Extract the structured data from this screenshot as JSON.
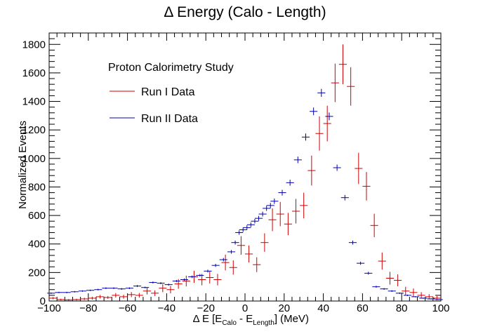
{
  "chart_data": {
    "type": "scatter",
    "title": "Δ Energy (Calo - Length)",
    "xlabel": {
      "prefix": "Δ E [E",
      "sub1": "Calo",
      "mid": " - E",
      "sub2": "Length",
      "suffix": "] (MeV)"
    },
    "ylabel": "Normalized Events",
    "xlim": [
      -100,
      100
    ],
    "ylim": [
      0,
      1880
    ],
    "x_ticks": [
      -100,
      -80,
      -60,
      -40,
      -20,
      0,
      20,
      40,
      60,
      80,
      100
    ],
    "x_tick_labels": [
      "−100",
      "−80",
      "−60",
      "−40",
      "−20",
      "0",
      "20",
      "40",
      "60",
      "80",
      "100"
    ],
    "y_ticks": [
      0,
      200,
      400,
      600,
      800,
      1000,
      1200,
      1400,
      1600,
      1800
    ],
    "y_tick_labels": [
      "0",
      "200",
      "400",
      "600",
      "800",
      "1000",
      "1200",
      "1400",
      "1600",
      "1800"
    ],
    "legend": {
      "title": "Proton Calorimetry Study",
      "placement": "top-left"
    },
    "series": [
      {
        "name": "Run I Data",
        "color": "#cc0000",
        "x": [
          -98,
          -94,
          -90,
          -86,
          -82,
          -78,
          -74,
          -70,
          -66,
          -62,
          -58,
          -54,
          -50,
          -46,
          -42,
          -38,
          -34,
          -30,
          -26,
          -22,
          -18,
          -14,
          -10,
          -6,
          -2,
          2,
          6,
          10,
          14,
          18,
          22,
          26,
          30,
          34,
          38,
          42,
          46,
          50,
          54,
          58,
          62,
          66,
          70,
          74,
          78,
          82,
          86,
          90,
          94,
          98
        ],
        "y": [
          20,
          10,
          8,
          10,
          15,
          20,
          30,
          25,
          40,
          30,
          45,
          40,
          70,
          55,
          90,
          80,
          120,
          140,
          170,
          150,
          165,
          150,
          270,
          235,
          390,
          330,
          255,
          410,
          570,
          610,
          540,
          630,
          670,
          915,
          1175,
          1245,
          1530,
          1660,
          1505,
          930,
          805,
          530,
          280,
          160,
          145,
          70,
          60,
          40,
          30,
          20
        ],
        "err": [
          8,
          6,
          6,
          6,
          8,
          10,
          12,
          10,
          16,
          14,
          18,
          16,
          24,
          20,
          28,
          26,
          34,
          38,
          42,
          40,
          42,
          40,
          55,
          50,
          65,
          60,
          52,
          65,
          80,
          85,
          78,
          86,
          90,
          105,
          120,
          125,
          135,
          140,
          135,
          110,
          100,
          82,
          60,
          45,
          42,
          30,
          28,
          22,
          18,
          15
        ]
      },
      {
        "name": "Run II Data",
        "color": "#0000aa",
        "x": [
          -99,
          -95,
          -91,
          -87,
          -83,
          -79,
          -75,
          -71,
          -67,
          -63,
          -59,
          -55,
          -51,
          -47,
          -43,
          -39,
          -35,
          -31,
          -27,
          -23,
          -19,
          -15,
          -11,
          -7,
          -5,
          -3,
          -1,
          1,
          3,
          5,
          7,
          9,
          11,
          13,
          15,
          19,
          23,
          27,
          31,
          35,
          39,
          43,
          47,
          51,
          55,
          59,
          63,
          67,
          71,
          75,
          79,
          83,
          87,
          91,
          95,
          99
        ],
        "y": [
          55,
          60,
          60,
          65,
          70,
          75,
          80,
          90,
          90,
          85,
          90,
          105,
          95,
          130,
          125,
          115,
          140,
          150,
          170,
          180,
          210,
          250,
          290,
          345,
          410,
          480,
          500,
          515,
          535,
          560,
          580,
          610,
          650,
          670,
          700,
          760,
          830,
          990,
          1150,
          1330,
          1460,
          1295,
          935,
          725,
          410,
          265,
          195,
          100,
          85,
          70,
          55,
          40,
          30,
          20,
          15,
          10
        ],
        "err": [
          5,
          5,
          5,
          5,
          5,
          5,
          6,
          6,
          6,
          6,
          6,
          7,
          6,
          7,
          7,
          7,
          8,
          8,
          9,
          9,
          10,
          11,
          12,
          13,
          14,
          15,
          15,
          16,
          16,
          16,
          17,
          17,
          18,
          18,
          19,
          20,
          21,
          23,
          25,
          27,
          28,
          27,
          22,
          19,
          14,
          11,
          10,
          7,
          6,
          6,
          5,
          5,
          4,
          4,
          4,
          3
        ]
      }
    ]
  }
}
